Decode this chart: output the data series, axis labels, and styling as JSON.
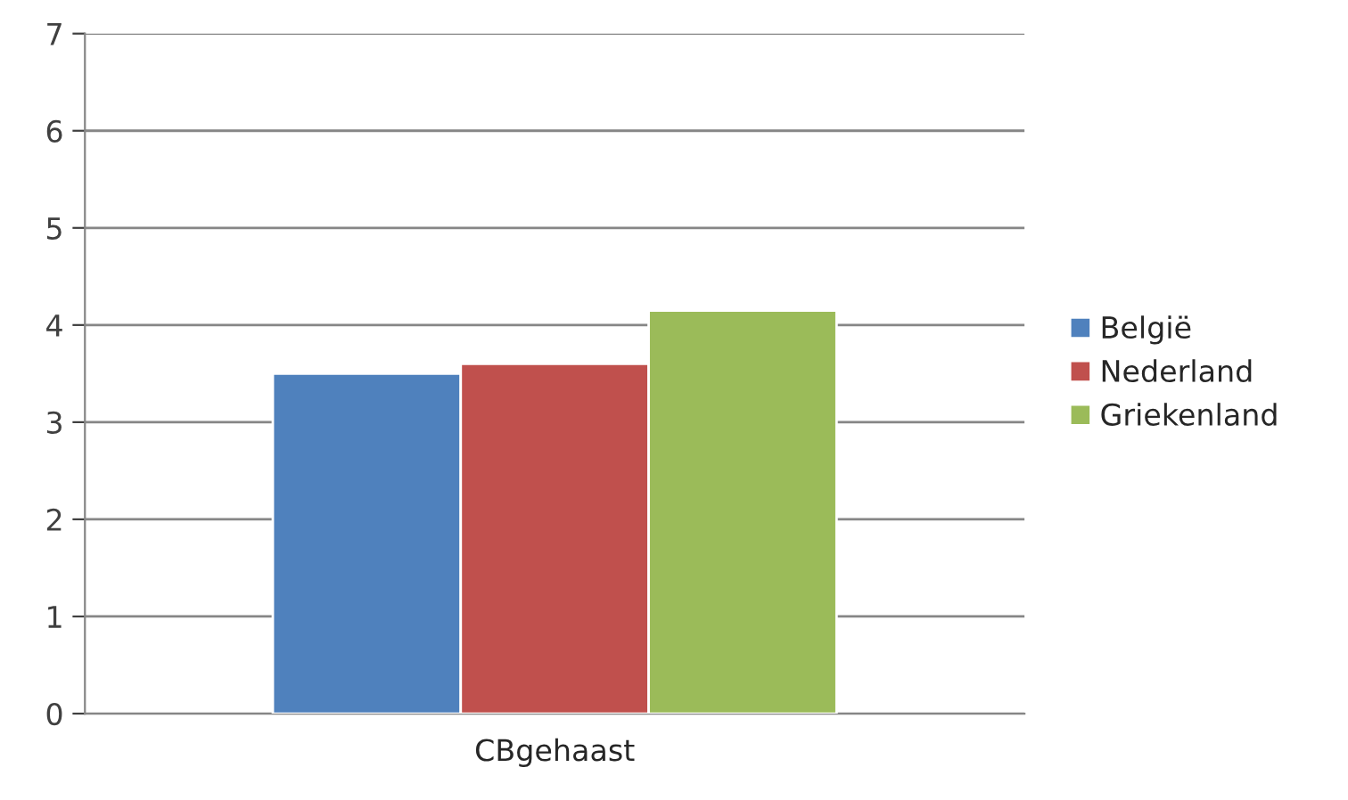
{
  "chart_data": {
    "type": "bar",
    "categories": [
      "CBgehaast"
    ],
    "series": [
      {
        "name": "België",
        "color": "#4f81bd",
        "values": [
          3.5
        ]
      },
      {
        "name": "Nederland",
        "color": "#c0504d",
        "values": [
          3.6
        ]
      },
      {
        "name": "Griekenland",
        "color": "#9bbb59",
        "values": [
          4.15
        ]
      }
    ],
    "ylim": [
      0,
      7
    ],
    "yticks": [
      0,
      1,
      2,
      3,
      4,
      5,
      6,
      7
    ],
    "grid": "y",
    "legend": "right"
  }
}
